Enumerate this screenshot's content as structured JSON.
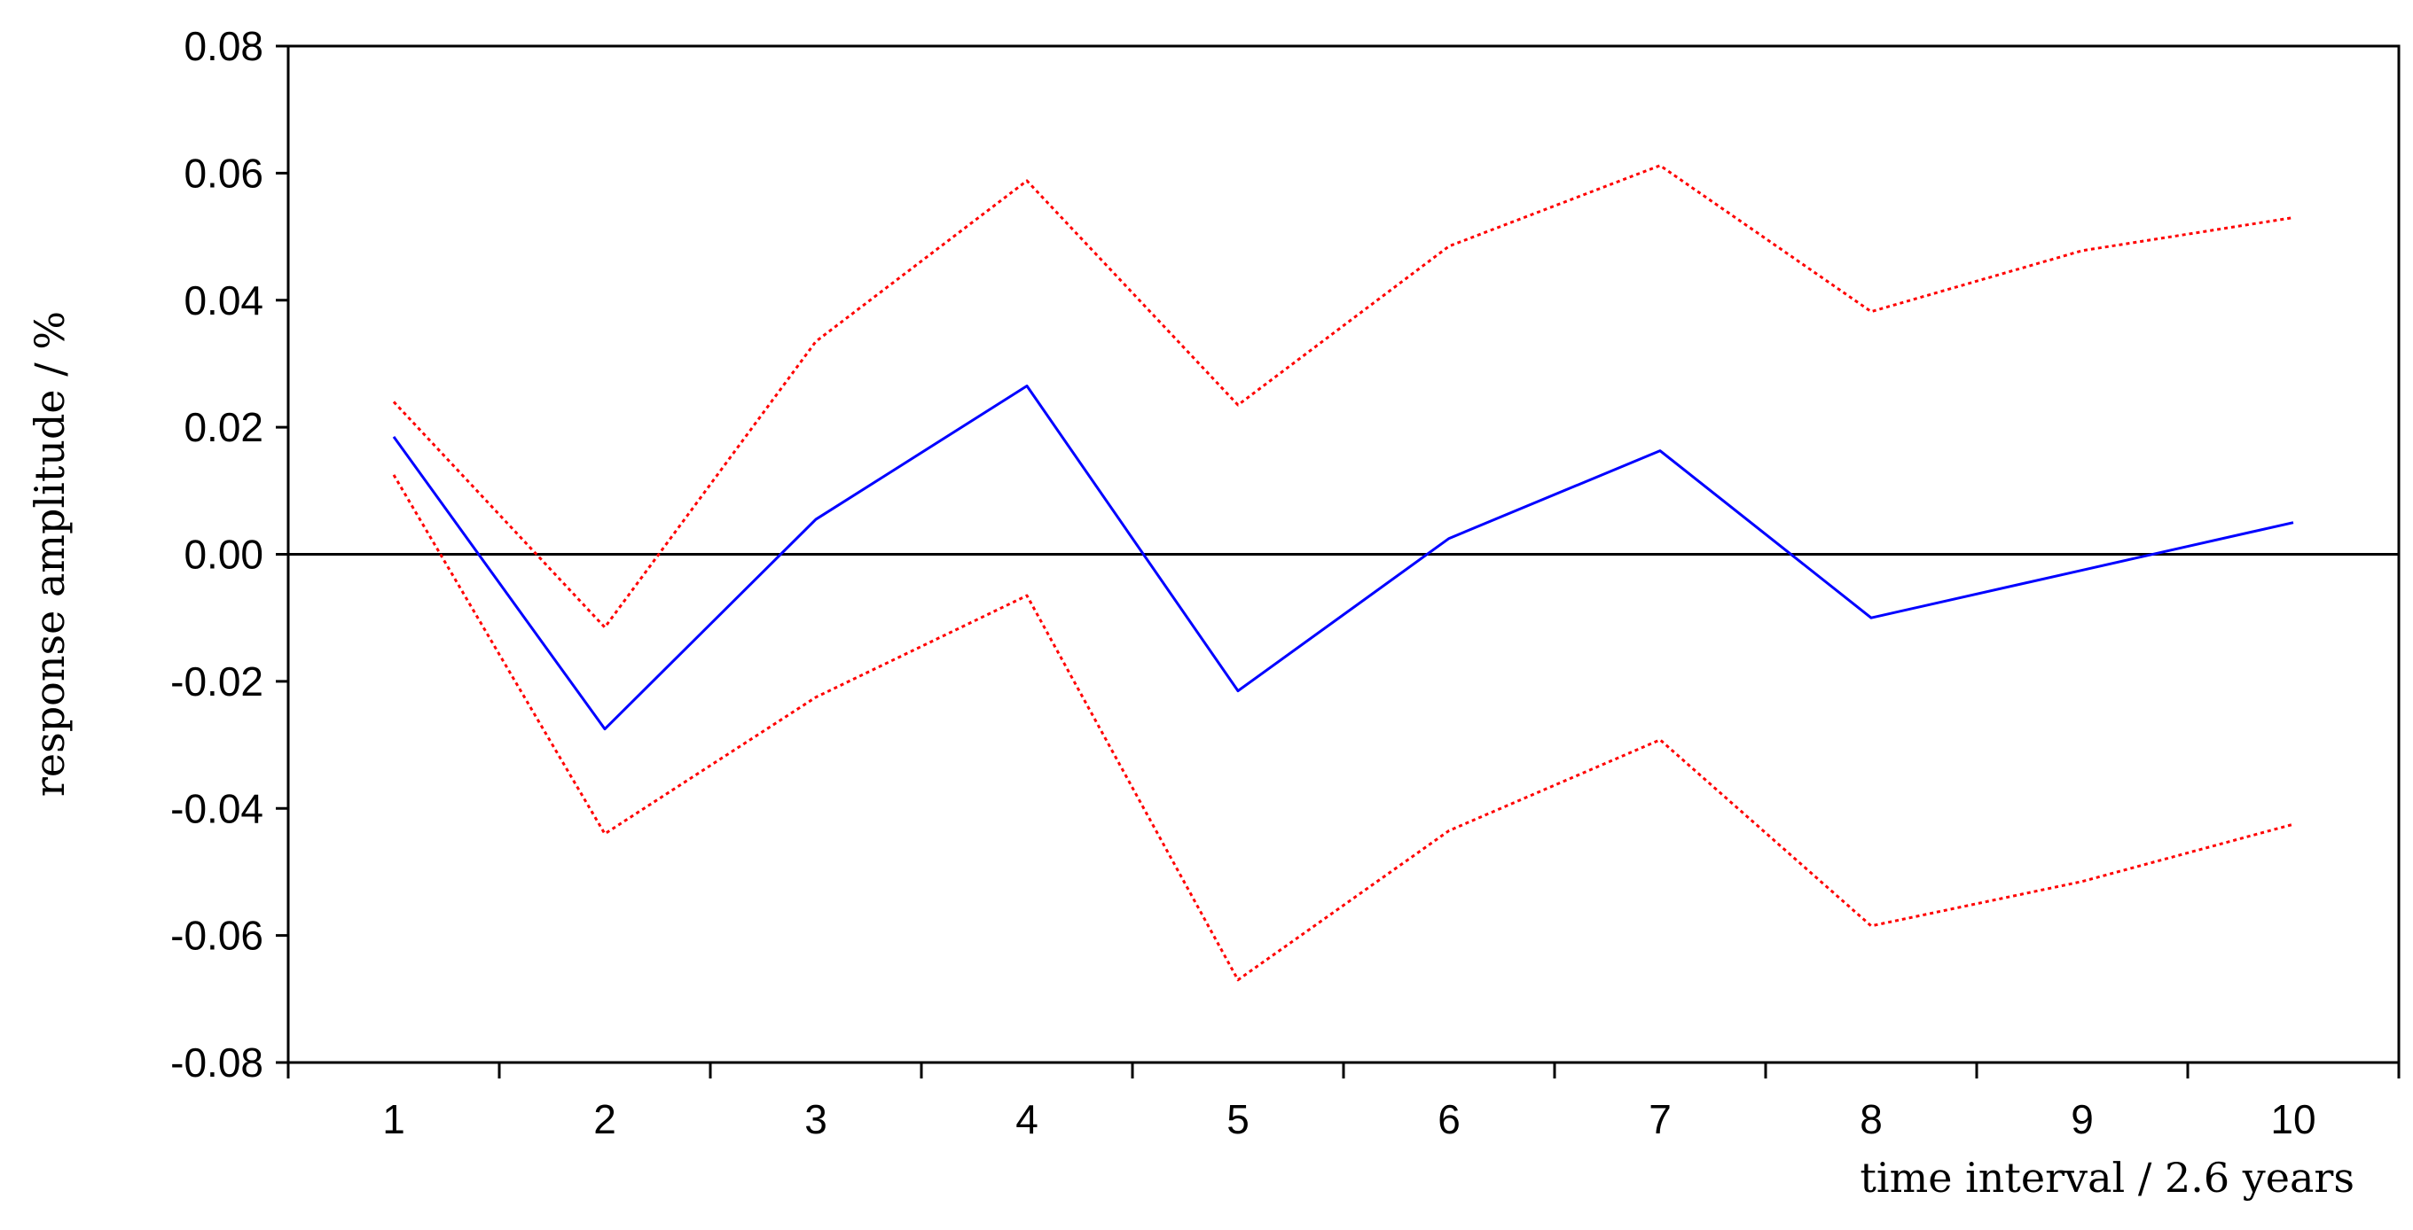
{
  "chart_data": {
    "type": "line",
    "title": "",
    "xlabel": "time interval / 2.6 years",
    "ylabel": "response amplitude / %",
    "x": [
      1,
      2,
      3,
      4,
      5,
      6,
      7,
      8,
      9,
      10
    ],
    "xlim": [
      0.5,
      10.5
    ],
    "ylim": [
      -0.08,
      0.08
    ],
    "x_ticks": [
      "1",
      "2",
      "3",
      "4",
      "5",
      "6",
      "7",
      "8",
      "9",
      "10"
    ],
    "y_ticks": [
      "0.08",
      "0.06",
      "0.04",
      "0.02",
      "0.00",
      "-0.02",
      "-0.04",
      "-0.06",
      "-0.08"
    ],
    "y_tick_values": [
      0.08,
      0.06,
      0.04,
      0.02,
      0.0,
      -0.02,
      -0.04,
      -0.06,
      -0.08
    ],
    "grid": false,
    "zero_line": true,
    "series": [
      {
        "values": [
          0.0185,
          -0.0275,
          0.0055,
          0.0265,
          -0.0215,
          0.0025,
          0.0163,
          -0.01,
          -0.0025,
          0.005
        ],
        "color": "#0000ff",
        "style": "solid"
      },
      {
        "values": [
          0.024,
          -0.0115,
          0.0335,
          0.0588,
          0.0235,
          0.0485,
          0.0612,
          0.0382,
          0.0478,
          0.053
        ],
        "color": "#ff0000",
        "style": "dotted"
      },
      {
        "values": [
          0.0125,
          -0.044,
          -0.0225,
          -0.0065,
          -0.067,
          -0.0435,
          -0.0292,
          -0.0585,
          -0.0515,
          -0.0425
        ],
        "color": "#ff0000",
        "style": "dotted"
      }
    ]
  }
}
